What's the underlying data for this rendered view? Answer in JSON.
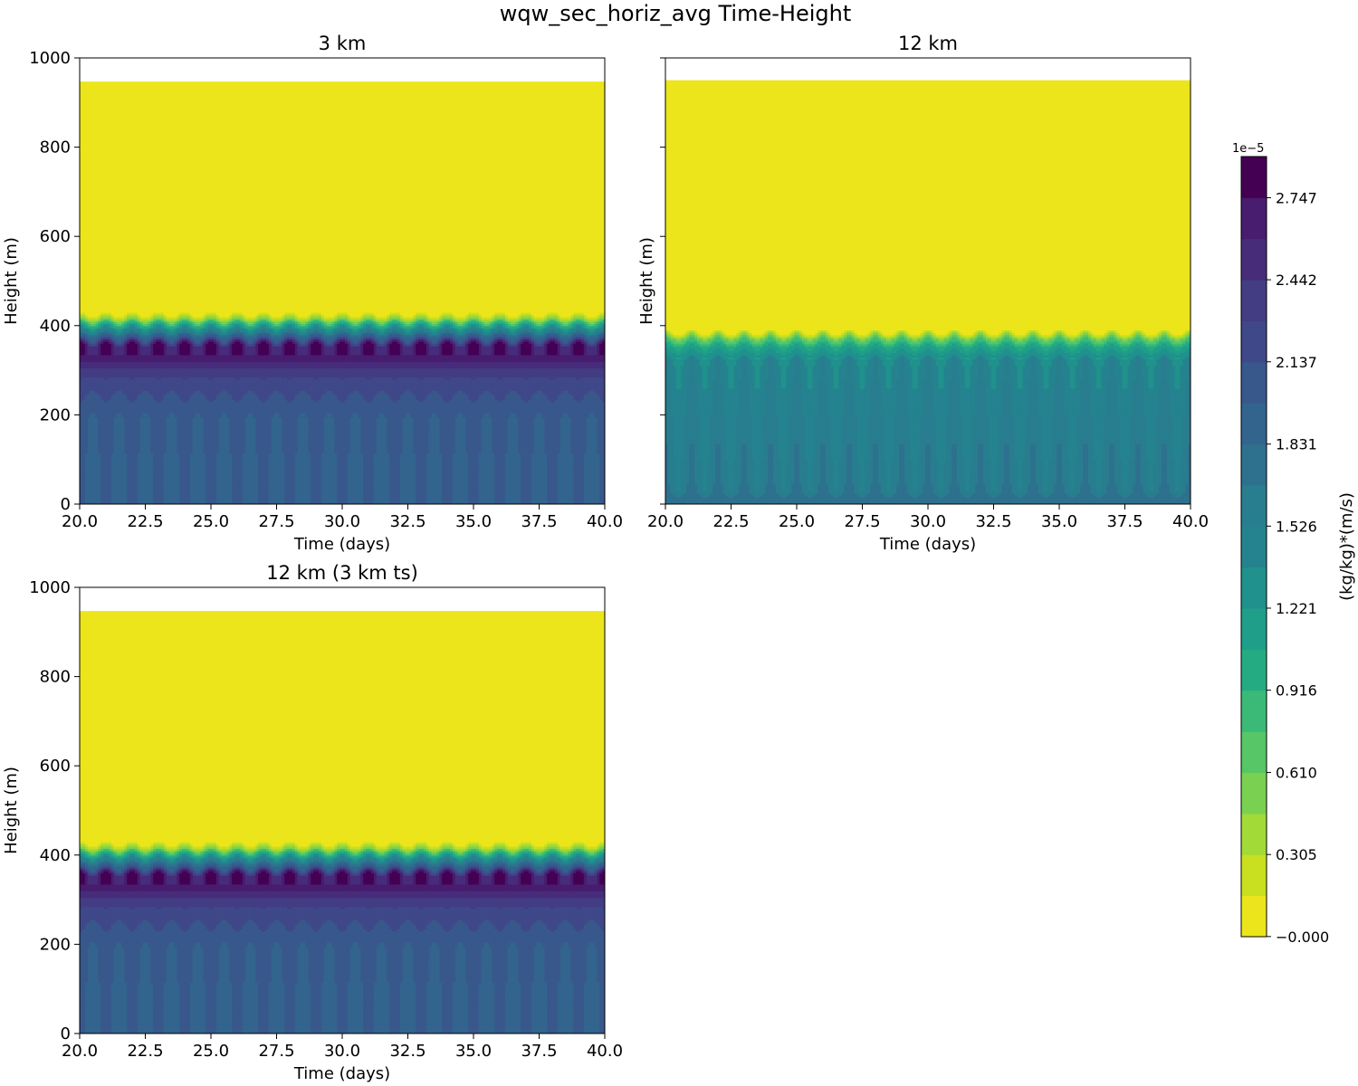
{
  "figure": {
    "title": "wqw_sec_horiz_avg Time-Height"
  },
  "colors": {
    "levels": [
      "#ece51b",
      "#c8e020",
      "#a2da37",
      "#7ad151",
      "#56c667",
      "#3aba76",
      "#25ab82",
      "#1f9e89",
      "#20918d",
      "#24838e",
      "#287d8e",
      "#2d718e",
      "#32648e",
      "#38588c",
      "#3f4889",
      "#433d84",
      "#472c7a",
      "#481c6e",
      "#440154"
    ]
  },
  "colorbar": {
    "label": "(kg/kg)*(m/s)",
    "exponent": "1e−5",
    "ticks": [
      {
        "value": 0.0,
        "label": "−0.000"
      },
      {
        "value": 0.305,
        "label": "0.305"
      },
      {
        "value": 0.61,
        "label": "0.610"
      },
      {
        "value": 0.916,
        "label": "0.916"
      },
      {
        "value": 1.221,
        "label": "1.221"
      },
      {
        "value": 1.526,
        "label": "1.526"
      },
      {
        "value": 1.831,
        "label": "1.831"
      },
      {
        "value": 2.137,
        "label": "2.137"
      },
      {
        "value": 2.442,
        "label": "2.442"
      },
      {
        "value": 2.747,
        "label": "2.747"
      }
    ],
    "vmin": -0.0005,
    "vmax": 2.9
  },
  "chart_data": [
    {
      "type": "heatmap",
      "title": "3 km",
      "xlabel": "Time (days)",
      "ylabel": "Height (m)",
      "xlim": [
        20.0,
        40.0
      ],
      "ylim": [
        0,
        1000
      ],
      "xticks": [
        "20.0",
        "22.5",
        "25.0",
        "27.5",
        "30.0",
        "32.5",
        "35.0",
        "37.5",
        "40.0"
      ],
      "yticks": [
        "0",
        "200",
        "400",
        "600",
        "800",
        "1000"
      ],
      "show_yticklabels": true,
      "data_top_height": 947,
      "bl_top_height": 410,
      "cycles": 20,
      "profile": [
        {
          "height": 0,
          "value": 1.95
        },
        {
          "height": 100,
          "value": 1.98
        },
        {
          "height": 200,
          "value": 2.02
        },
        {
          "height": 280,
          "value": 2.25
        },
        {
          "height": 330,
          "value": 2.72
        },
        {
          "height": 355,
          "value": 2.72
        },
        {
          "height": 375,
          "value": 1.9
        },
        {
          "height": 395,
          "value": 1.2
        },
        {
          "height": 410,
          "value": 0.55
        },
        {
          "height": 420,
          "value": 0.2
        },
        {
          "height": 430,
          "value": 0.0
        },
        {
          "height": 947,
          "value": 0.0
        }
      ]
    },
    {
      "type": "heatmap",
      "title": "12 km",
      "xlabel": "Time (days)",
      "ylabel": "Height (m)",
      "xlim": [
        20.0,
        40.0
      ],
      "ylim": [
        0,
        1000
      ],
      "xticks": [
        "20.0",
        "22.5",
        "25.0",
        "27.5",
        "30.0",
        "32.5",
        "35.0",
        "37.5",
        "40.0"
      ],
      "yticks": [
        "0",
        "200",
        "400",
        "600",
        "800",
        "1000"
      ],
      "show_yticklabels": false,
      "data_top_height": 950,
      "bl_top_height": 370,
      "cycles": 20,
      "profile": [
        {
          "height": 0,
          "value": 1.75
        },
        {
          "height": 40,
          "value": 1.62
        },
        {
          "height": 150,
          "value": 1.55
        },
        {
          "height": 250,
          "value": 1.5
        },
        {
          "height": 320,
          "value": 1.42
        },
        {
          "height": 350,
          "value": 1.1
        },
        {
          "height": 370,
          "value": 0.6
        },
        {
          "height": 385,
          "value": 0.05
        },
        {
          "height": 390,
          "value": 0.0
        },
        {
          "height": 950,
          "value": 0.0
        }
      ]
    },
    {
      "type": "heatmap",
      "title": "12 km (3 km ts)",
      "xlabel": "Time (days)",
      "ylabel": "Height (m)",
      "xlim": [
        20.0,
        40.0
      ],
      "ylim": [
        0,
        1000
      ],
      "xticks": [
        "20.0",
        "22.5",
        "25.0",
        "27.5",
        "30.0",
        "32.5",
        "35.0",
        "37.5",
        "40.0"
      ],
      "yticks": [
        "0",
        "200",
        "400",
        "600",
        "800",
        "1000"
      ],
      "show_yticklabels": true,
      "data_top_height": 947,
      "bl_top_height": 410,
      "cycles": 20,
      "profile": [
        {
          "height": 0,
          "value": 1.95
        },
        {
          "height": 100,
          "value": 1.98
        },
        {
          "height": 200,
          "value": 2.02
        },
        {
          "height": 280,
          "value": 2.25
        },
        {
          "height": 330,
          "value": 2.72
        },
        {
          "height": 355,
          "value": 2.72
        },
        {
          "height": 375,
          "value": 1.9
        },
        {
          "height": 395,
          "value": 1.2
        },
        {
          "height": 410,
          "value": 0.55
        },
        {
          "height": 420,
          "value": 0.2
        },
        {
          "height": 430,
          "value": 0.0
        },
        {
          "height": 947,
          "value": 0.0
        }
      ]
    }
  ]
}
